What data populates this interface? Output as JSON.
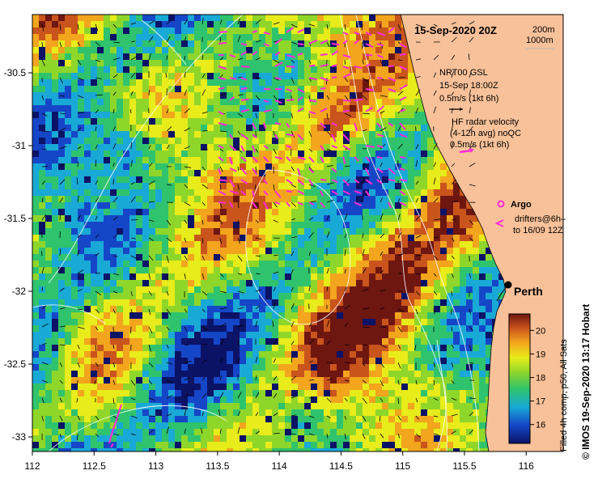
{
  "map": {
    "title": "15-Sep-2020 20Z",
    "contour_legend": [
      "200m",
      "1000m"
    ],
    "gsl_legend": [
      "NRT00 GSL",
      "15-Sep 18:00Z",
      "0.5m/s (1kt 6h)"
    ],
    "radar_legend": [
      "HF radar velocity",
      "(4-12h avg) noQC",
      "0.5m/s (1kt 6h)"
    ],
    "argo_label": "Argo",
    "drifter_legend": [
      "drifters@6h–",
      "to 16/09 12Z"
    ],
    "city": "Perth",
    "colorbar_title": "Filled 4h comp, p50, All Sats",
    "colorbar_ticks": [
      "16",
      "17",
      "18",
      "19",
      "20"
    ],
    "credit": "©  IMOS 19-Sep-2020 13:17 Hobart",
    "x_ticks": [
      "112",
      "112.5",
      "113",
      "113.5",
      "114",
      "114.5",
      "115",
      "115.5",
      "116"
    ],
    "y_ticks": [
      "-30.5",
      "-31",
      "-31.5",
      "-32",
      "-32.5",
      "-33"
    ],
    "lon_range": [
      112,
      116.3
    ],
    "lat_range": [
      -33.1,
      -30.1
    ],
    "colors": {
      "land": "#f9c199",
      "missing": "#0b1366",
      "argo": "#ff2bd6",
      "drifter": "#ff2bd6",
      "radar": "#ff2bd6"
    }
  }
}
